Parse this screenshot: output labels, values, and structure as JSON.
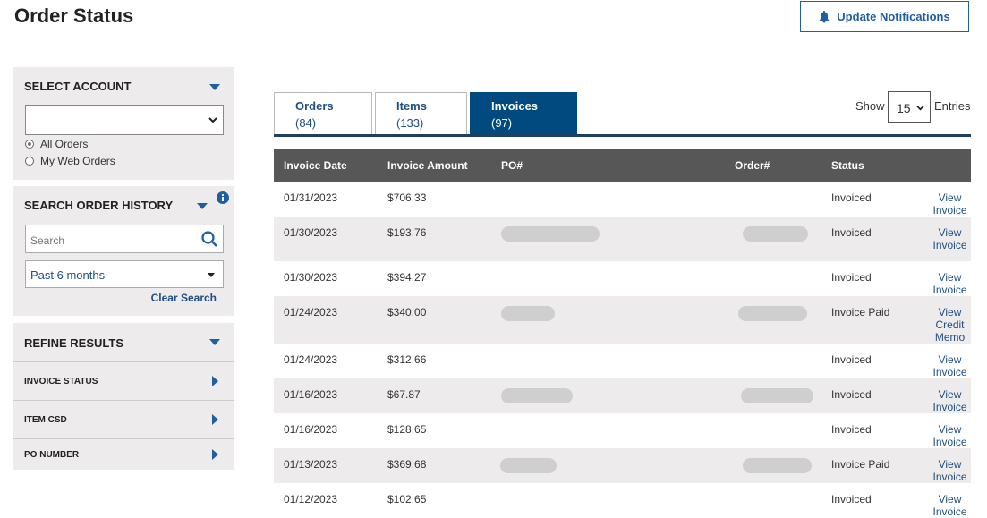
{
  "page_title": "Order Status",
  "update_notifications": "Update Notifications",
  "select_account": {
    "title": "SELECT ACCOUNT",
    "value": "",
    "options": [
      {
        "label": "All Orders",
        "checked": true
      },
      {
        "label": "My Web Orders",
        "checked": false
      }
    ]
  },
  "search_history": {
    "title": "SEARCH ORDER HISTORY",
    "search_placeholder": "Search",
    "period": "Past 6 months",
    "clear": "Clear Search"
  },
  "refine": {
    "title": "REFINE RESULTS",
    "items": [
      "INVOICE STATUS",
      "ITEM CSD",
      "PO NUMBER"
    ]
  },
  "tabs": [
    {
      "label": "Orders",
      "count": "(84)"
    },
    {
      "label": "Items",
      "count": "(133)"
    },
    {
      "label": "Invoices",
      "count": "(97)",
      "active": true
    }
  ],
  "show": {
    "label": "Show",
    "value": "15",
    "suffix": "Entries"
  },
  "table": {
    "headers": [
      "Invoice Date",
      "Invoice Amount",
      "PO#",
      "Order#",
      "Status",
      ""
    ],
    "rows": [
      {
        "date": "01/31/2023",
        "amount": "$706.33",
        "status": "Invoiced",
        "action": "View Invoice",
        "redacted": false
      },
      {
        "date": "01/30/2023",
        "amount": "$193.76",
        "status": "Invoiced",
        "action": "View Invoice",
        "redacted": true
      },
      {
        "date": "01/30/2023",
        "amount": "$394.27",
        "status": "Invoiced",
        "action": "View Invoice",
        "redacted": false
      },
      {
        "date": "01/24/2023",
        "amount": "$340.00",
        "status": "Invoice Paid",
        "action": "View Credit Memo",
        "redacted": true
      },
      {
        "date": "01/24/2023",
        "amount": "$312.66",
        "status": "Invoiced",
        "action": "View Invoice",
        "redacted": false
      },
      {
        "date": "01/16/2023",
        "amount": "$67.87",
        "status": "Invoiced",
        "action": "View Invoice",
        "redacted": true
      },
      {
        "date": "01/16/2023",
        "amount": "$128.65",
        "status": "Invoiced",
        "action": "View Invoice",
        "redacted": false
      },
      {
        "date": "01/13/2023",
        "amount": "$369.68",
        "status": "Invoice Paid",
        "action": "View Invoice",
        "redacted": true
      },
      {
        "date": "01/12/2023",
        "amount": "$102.65",
        "status": "Invoiced",
        "action": "View Invoice",
        "redacted": false
      }
    ]
  },
  "colors": {
    "accent": "#1f5fa0",
    "active_tab": "#004a80",
    "header": "#575757",
    "panel": "#edebeb"
  }
}
